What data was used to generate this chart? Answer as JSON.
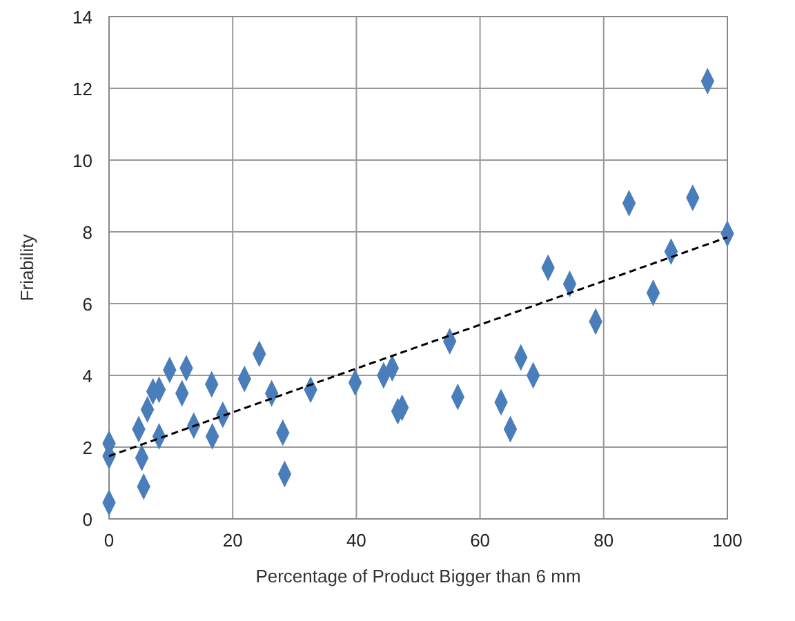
{
  "chart_data": {
    "type": "scatter",
    "xlabel": "Percentage of Product Bigger than 6 mm",
    "ylabel": "Friability",
    "xlim": [
      0,
      100
    ],
    "ylim": [
      0,
      14
    ],
    "xticks": [
      0,
      20,
      40,
      60,
      80,
      100
    ],
    "yticks": [
      0,
      2,
      4,
      6,
      8,
      10,
      12,
      14
    ],
    "grid": true,
    "series": [
      {
        "color": "#4a7ebb",
        "marker": "diamond",
        "x": [
          0,
          0,
          0,
          4.8,
          5.3,
          5.6,
          6.2,
          7.1,
          8.1,
          8.1,
          9.8,
          12.5,
          11.8,
          13.7,
          16.6,
          16.7,
          18.4,
          21.9,
          24.3,
          26.3,
          28.1,
          28.4,
          32.6,
          39.8,
          44.4,
          45.8,
          46.7,
          47.4,
          55.1,
          56.4,
          63.4,
          64.9,
          66.6,
          68.6,
          71,
          74.5,
          78.7,
          84.1,
          88,
          90.9,
          94.4,
          96.8,
          100
        ],
        "values": [
          0.45,
          1.75,
          2.1,
          2.5,
          1.7,
          0.9,
          3.05,
          3.55,
          3.6,
          2.3,
          4.15,
          4.2,
          3.5,
          2.6,
          3.75,
          2.3,
          2.9,
          3.9,
          4.6,
          3.5,
          2.4,
          1.25,
          3.6,
          3.8,
          4,
          4.2,
          3,
          3.1,
          4.95,
          3.4,
          3.25,
          2.5,
          4.5,
          4,
          7,
          6.55,
          5.5,
          8.8,
          6.3,
          7.45,
          8.95,
          12.2,
          7.95
        ]
      },
      {
        "type": "line",
        "color": "#000000",
        "line_style": "dashed",
        "marker": "none",
        "x": [
          0,
          100
        ],
        "values": [
          1.75,
          7.85
        ]
      }
    ]
  }
}
